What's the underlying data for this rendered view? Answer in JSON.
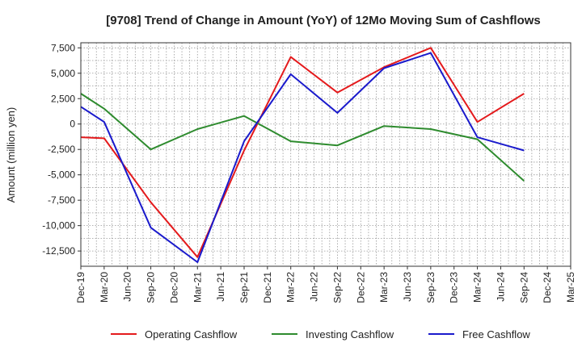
{
  "chart_data": {
    "type": "line",
    "title": "[9708]  Trend of Change in Amount (YoY) of 12Mo Moving Sum of Cashflows",
    "xlabel": "",
    "ylabel": "Amount (million yen)",
    "categories": [
      "Dec-19",
      "Mar-20",
      "Jun-20",
      "Sep-20",
      "Dec-20",
      "Mar-21",
      "Jun-21",
      "Sep-21",
      "Dec-21",
      "Mar-22",
      "Jun-22",
      "Sep-22",
      "Dec-22",
      "Mar-23",
      "Jun-23",
      "Sep-23",
      "Dec-23",
      "Mar-24",
      "Jun-24",
      "Sep-24",
      "Dec-24",
      "Mar-25"
    ],
    "ylim": [
      -14000,
      8000
    ],
    "yticks": [
      7500,
      5000,
      2500,
      0,
      -2500,
      -5000,
      -7500,
      -10000,
      -12500
    ],
    "ytick_labels": [
      "7,500",
      "5,000",
      "2,500",
      "0",
      "-2,500",
      "-5,000",
      "-7,500",
      "-10,000",
      "-12,500"
    ],
    "grid": true,
    "legend_position": "bottom",
    "series": [
      {
        "name": "Operating Cashflow",
        "color": "#e41a1c",
        "values": [
          -1300,
          -1400,
          null,
          -7700,
          null,
          -13100,
          null,
          -2600,
          null,
          6600,
          null,
          3100,
          null,
          5600,
          null,
          7500,
          null,
          200,
          null,
          3000,
          null,
          null
        ]
      },
      {
        "name": "Investing Cashflow",
        "color": "#2e8b2e",
        "values": [
          3000,
          1500,
          null,
          -2500,
          null,
          -500,
          null,
          800,
          null,
          -1700,
          null,
          -2100,
          null,
          -200,
          null,
          -500,
          null,
          -1500,
          null,
          -5600,
          null,
          null
        ]
      },
      {
        "name": "Free Cashflow",
        "color": "#1a1acc",
        "values": [
          1700,
          200,
          null,
          -10200,
          null,
          -13600,
          null,
          -1700,
          null,
          4900,
          null,
          1100,
          null,
          5500,
          null,
          7000,
          null,
          -1300,
          null,
          -2600,
          null,
          null
        ]
      }
    ]
  }
}
